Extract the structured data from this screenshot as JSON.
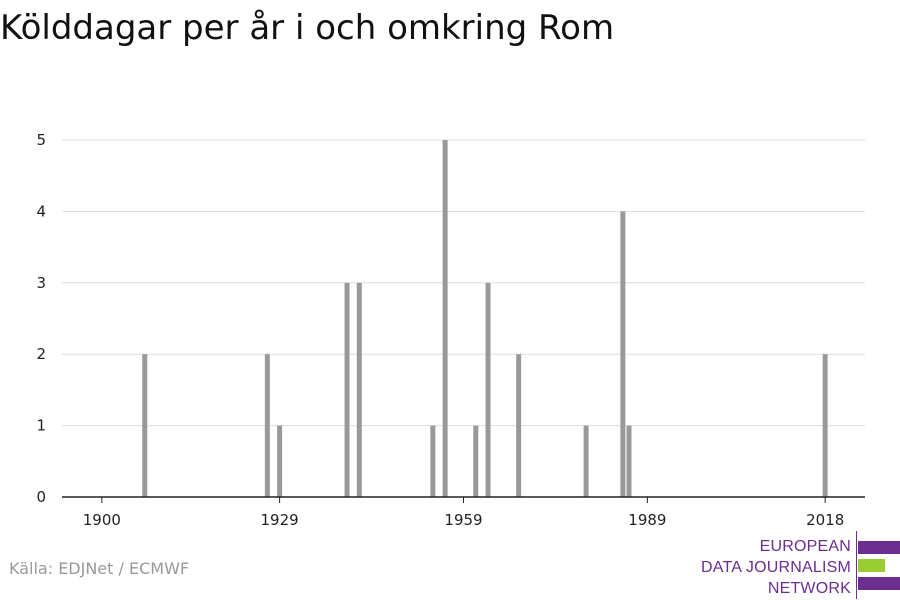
{
  "title": "Kölddagar per år i och omkring Rom",
  "source": "Källa: EDJNet / ECMWF",
  "logo": {
    "lines": [
      "EUROPEAN",
      "DATA JOURNALISM",
      "NETWORK"
    ],
    "colors": {
      "text": "#6b2d8f",
      "bar_main": "#6b2d8f",
      "bar_accent": "#9acd32"
    }
  },
  "chart_data": {
    "type": "bar",
    "title": "Kölddagar per år i och omkring Rom",
    "xlabel": "",
    "ylabel": "",
    "xlim": [
      1893.5,
      2024.5
    ],
    "ylim": [
      0,
      5
    ],
    "x_ticks": [
      1900,
      1929,
      1959,
      1989,
      2018
    ],
    "y_ticks": [
      0,
      1,
      2,
      3,
      4,
      5
    ],
    "grid": true,
    "legend": "none",
    "bar_color": "#999999",
    "series": [
      {
        "x": [
          1907,
          1927,
          1929,
          1940,
          1942,
          1954,
          1956,
          1961,
          1963,
          1968,
          1979,
          1985,
          1986,
          2018
        ],
        "values": [
          2,
          2,
          1,
          3,
          3,
          1,
          5,
          1,
          3,
          2,
          1,
          4,
          1,
          2
        ]
      }
    ]
  }
}
